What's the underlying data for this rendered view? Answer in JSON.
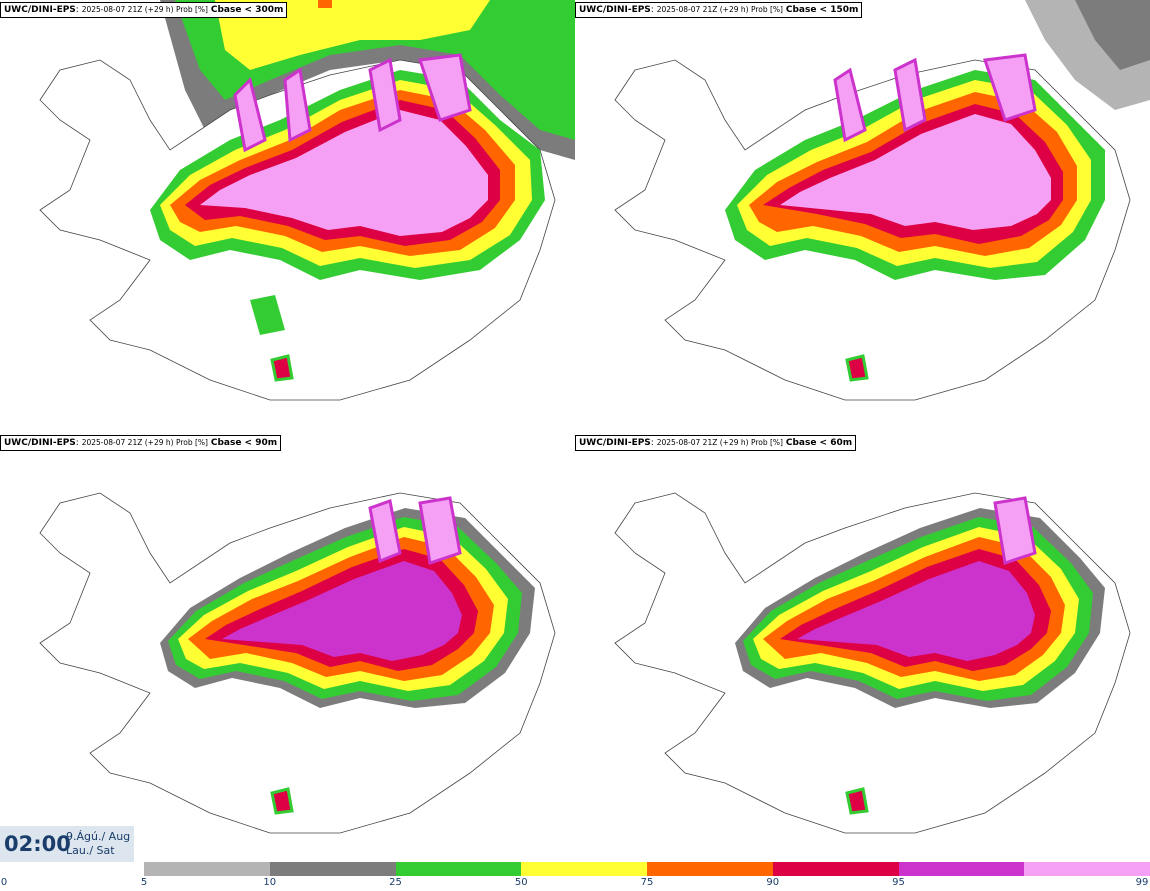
{
  "panels": [
    {
      "model": "UWC/DINI-EPS",
      "info": "2025-08-07 21Z (+29 h) Prob [%]",
      "param": "Cbase < 300m"
    },
    {
      "model": "UWC/DINI-EPS",
      "info": "2025-08-07 21Z (+29 h) Prob [%]",
      "param": "Cbase < 150m"
    },
    {
      "model": "UWC/DINI-EPS",
      "info": "2025-08-07 21Z (+29 h) Prob [%]",
      "param": "Cbase < 90m"
    },
    {
      "model": "UWC/DINI-EPS",
      "info": "2025-08-07 21Z (+29 h) Prob [%]",
      "param": "Cbase < 60m"
    }
  ],
  "valid_time": {
    "hour": "02:00",
    "date_line1": "9.Ágú./ Aug",
    "date_line2": "Lau./ Sat"
  },
  "legend": {
    "colors": [
      "#b4b4b4",
      "#7c7c7c",
      "#33cc33",
      "#ffff33",
      "#ff6600",
      "#dd0044",
      "#cc33cc",
      "#f5a0f5"
    ],
    "ticks": [
      "0",
      "5",
      "10",
      "25",
      "50",
      "75",
      "90",
      "95",
      "99"
    ]
  }
}
